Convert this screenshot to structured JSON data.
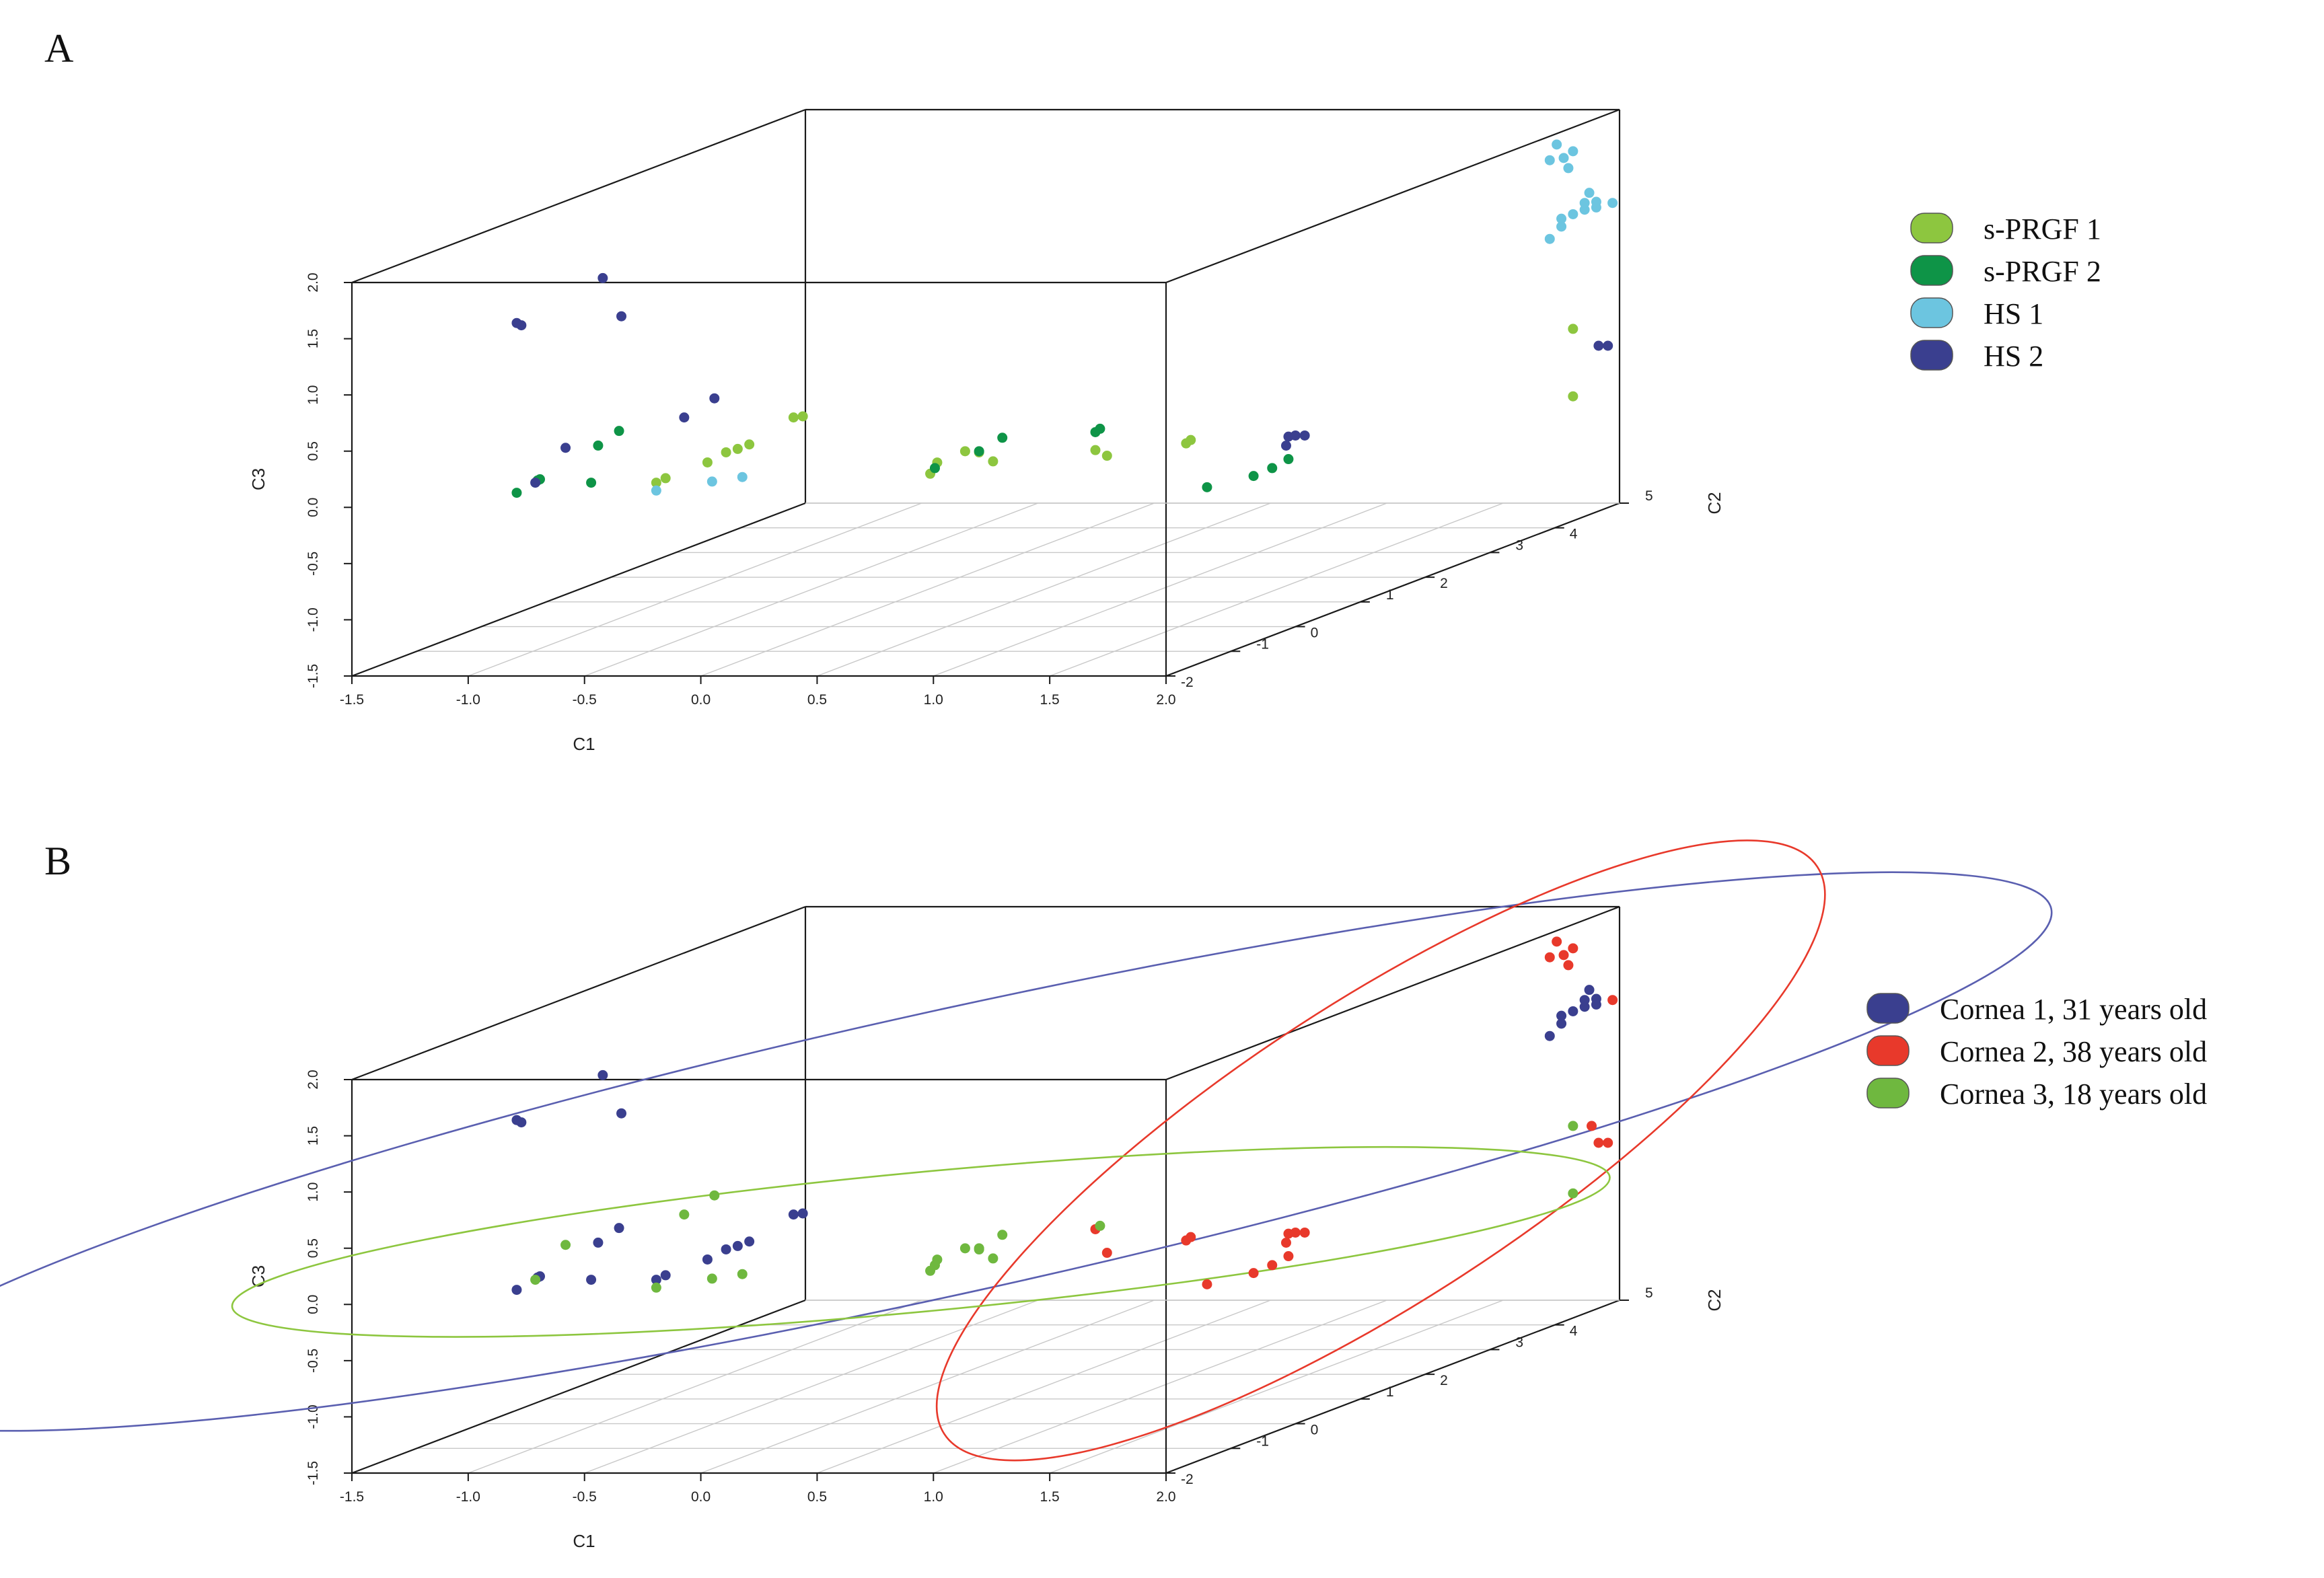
{
  "chart_data": [
    {
      "panel": "A",
      "type": "scatter",
      "xlabel": "C1",
      "ylabel": "C2",
      "zlabel": "C3",
      "xlim": [
        -1.5,
        2.0
      ],
      "ylim": [
        -2,
        5
      ],
      "zlim": [
        -1.5,
        2.0
      ],
      "x_ticks": [
        "-1.5",
        "-1.0",
        "-0.5",
        "0.0",
        "0.5",
        "1.0",
        "1.5",
        "2.0"
      ],
      "y_ticks": [
        "-2",
        "-1",
        "0",
        "1",
        "2",
        "3",
        "4",
        "5"
      ],
      "z_ticks": [
        "-1.5",
        "-1.0",
        "-0.5",
        "0.0",
        "0.5",
        "1.0",
        "1.5",
        "2.0"
      ],
      "legend": [
        {
          "name": "s-PRGF 1",
          "color": "#8dc63f"
        },
        {
          "name": "s-PRGF 2",
          "color": "#0e9447"
        },
        {
          "name": "HS 1",
          "color": "#6cc5e0"
        },
        {
          "name": "HS 2",
          "color": "#3a3f8f"
        }
      ],
      "series": [
        {
          "name": "s-PRGF 1",
          "color": "#8dc63f",
          "points": [
            [
              -0.47,
              -1,
              0.0
            ],
            [
              -0.43,
              -1,
              0.04
            ],
            [
              -0.25,
              -1,
              0.18
            ],
            [
              -0.17,
              -1,
              0.27
            ],
            [
              -0.12,
              -1,
              0.3
            ],
            [
              -0.07,
              -1,
              0.34
            ],
            [
              0.12,
              -1,
              0.58
            ],
            [
              0.16,
              -1,
              0.59
            ],
            [
              0.29,
              0.5,
              -0.25
            ],
            [
              0.32,
              0.5,
              -0.15
            ],
            [
              0.44,
              0.5,
              -0.05
            ],
            [
              0.5,
              0.5,
              -0.06
            ],
            [
              0.56,
              0.5,
              -0.14
            ],
            [
              1.0,
              0.5,
              -0.04
            ],
            [
              1.05,
              0.5,
              -0.09
            ],
            [
              1.39,
              0.5,
              0.02
            ],
            [
              1.41,
              0.5,
              0.05
            ],
            [
              1.8,
              5,
              0.05
            ],
            [
              1.8,
              5,
              -0.55
            ]
          ]
        },
        {
          "name": "s-PRGF 2",
          "color": "#0e9447",
          "points": [
            [
              -1.07,
              -1,
              -0.09
            ],
            [
              -0.98,
              -1,
              0.02
            ],
            [
              -0.97,
              -1,
              0.03
            ],
            [
              -0.75,
              -1,
              0.0
            ],
            [
              -0.72,
              -1,
              0.33
            ],
            [
              -0.63,
              -1,
              0.46
            ],
            [
              0.31,
              0.5,
              -0.2
            ],
            [
              0.5,
              0.5,
              -0.05
            ],
            [
              0.6,
              0.5,
              0.07
            ],
            [
              1.0,
              0.5,
              0.12
            ],
            [
              1.02,
              0.5,
              0.15
            ],
            [
              1.48,
              0.5,
              -0.37
            ],
            [
              1.68,
              0.5,
              -0.27
            ],
            [
              1.76,
              0.5,
              -0.2
            ],
            [
              1.83,
              0.5,
              -0.12
            ]
          ]
        },
        {
          "name": "HS 1",
          "color": "#6cc5e0",
          "points": [
            [
              -0.47,
              -1,
              -0.07
            ],
            [
              -0.23,
              -1,
              0.01
            ],
            [
              -0.1,
              -1,
              0.05
            ],
            [
              1.7,
              5,
              0.85
            ],
            [
              1.75,
              5,
              0.96
            ],
            [
              1.75,
              5,
              1.03
            ],
            [
              1.8,
              5,
              1.07
            ],
            [
              1.85,
              5,
              1.11
            ],
            [
              1.9,
              5,
              1.13
            ],
            [
              1.9,
              5,
              1.18
            ],
            [
              1.85,
              5,
              1.17
            ],
            [
              1.87,
              5,
              1.26
            ],
            [
              1.97,
              5,
              1.17
            ],
            [
              1.78,
              5,
              1.48
            ],
            [
              1.8,
              5,
              1.63
            ],
            [
              1.7,
              5,
              1.55
            ],
            [
              1.76,
              5,
              1.57
            ],
            [
              1.73,
              5,
              1.69
            ]
          ]
        },
        {
          "name": "HS 2",
          "color": "#3a3f8f",
          "points": [
            [
              -1.07,
              -1,
              1.42
            ],
            [
              -1.05,
              -1,
              1.4
            ],
            [
              -0.7,
              -1,
              1.82
            ],
            [
              -0.62,
              -1,
              1.48
            ],
            [
              -0.99,
              -1,
              0.0
            ],
            [
              -0.86,
              -1,
              0.31
            ],
            [
              -0.35,
              -1,
              0.58
            ],
            [
              -0.22,
              -1,
              0.75
            ],
            [
              1.83,
              0.5,
              0.08
            ],
            [
              1.86,
              0.5,
              0.09
            ],
            [
              1.9,
              0.5,
              0.09
            ],
            [
              1.82,
              0.5,
              0.0
            ],
            [
              1.91,
              5,
              -0.1
            ],
            [
              1.95,
              5,
              -0.1
            ]
          ]
        }
      ]
    },
    {
      "panel": "B",
      "type": "scatter",
      "xlabel": "C1",
      "ylabel": "C2",
      "zlabel": "C3",
      "xlim": [
        -1.5,
        2.0
      ],
      "ylim": [
        -2,
        5
      ],
      "zlim": [
        -1.5,
        2.0
      ],
      "x_ticks": [
        "-1.5",
        "-1.0",
        "-0.5",
        "0.0",
        "0.5",
        "1.0",
        "1.5",
        "2.0"
      ],
      "y_ticks": [
        "-2",
        "-1",
        "0",
        "1",
        "2",
        "3",
        "4",
        "5"
      ],
      "z_ticks": [
        "-1.5",
        "-1.0",
        "-0.5",
        "0.0",
        "0.5",
        "1.0",
        "1.5",
        "2.0"
      ],
      "legend": [
        {
          "name": "Cornea 1, 31 years old",
          "color": "#3a3f8f"
        },
        {
          "name": "Cornea 2, 38 years old",
          "color": "#e8392b"
        },
        {
          "name": "Cornea 3, 18 years old",
          "color": "#6fb83f"
        }
      ],
      "series": [
        {
          "name": "Cornea 1, 31 years old",
          "color": "#3a3f8f",
          "points": [
            [
              -1.07,
              -1,
              -0.09
            ],
            [
              -0.98,
              -1,
              0.02
            ],
            [
              -0.97,
              -1,
              0.03
            ],
            [
              -0.75,
              -1,
              0.0
            ],
            [
              -0.72,
              -1,
              0.33
            ],
            [
              -0.63,
              -1,
              0.46
            ],
            [
              -0.47,
              -1,
              0.0
            ],
            [
              -0.43,
              -1,
              0.04
            ],
            [
              -0.25,
              -1,
              0.18
            ],
            [
              -0.17,
              -1,
              0.27
            ],
            [
              -0.12,
              -1,
              0.3
            ],
            [
              -0.07,
              -1,
              0.34
            ],
            [
              0.12,
              -1,
              0.58
            ],
            [
              0.16,
              -1,
              0.59
            ],
            [
              -1.07,
              -1,
              1.42
            ],
            [
              -1.05,
              -1,
              1.4
            ],
            [
              -0.7,
              -1,
              1.82
            ],
            [
              -0.62,
              -1,
              1.48
            ],
            [
              1.7,
              5,
              0.85
            ],
            [
              1.75,
              5,
              0.96
            ],
            [
              1.75,
              5,
              1.03
            ],
            [
              1.8,
              5,
              1.07
            ],
            [
              1.85,
              5,
              1.11
            ],
            [
              1.9,
              5,
              1.13
            ],
            [
              1.9,
              5,
              1.18
            ],
            [
              1.85,
              5,
              1.17
            ],
            [
              1.87,
              5,
              1.26
            ]
          ]
        },
        {
          "name": "Cornea 2, 38 years old",
          "color": "#e8392b",
          "points": [
            [
              1.0,
              0.5,
              0.12
            ],
            [
              1.39,
              0.5,
              0.02
            ],
            [
              1.41,
              0.5,
              0.05
            ],
            [
              1.83,
              0.5,
              0.08
            ],
            [
              1.86,
              0.5,
              0.09
            ],
            [
              1.9,
              0.5,
              0.09
            ],
            [
              1.82,
              0.5,
              0.0
            ],
            [
              1.48,
              0.5,
              -0.37
            ],
            [
              1.68,
              0.5,
              -0.27
            ],
            [
              1.76,
              0.5,
              -0.2
            ],
            [
              1.83,
              0.5,
              -0.12
            ],
            [
              1.05,
              0.5,
              -0.09
            ],
            [
              1.91,
              5,
              -0.1
            ],
            [
              1.95,
              5,
              -0.1
            ],
            [
              1.88,
              5,
              0.05
            ],
            [
              1.97,
              5,
              1.17
            ],
            [
              1.78,
              5,
              1.48
            ],
            [
              1.8,
              5,
              1.63
            ],
            [
              1.7,
              5,
              1.55
            ],
            [
              1.76,
              5,
              1.57
            ],
            [
              1.73,
              5,
              1.69
            ]
          ]
        },
        {
          "name": "Cornea 3, 18 years old",
          "color": "#6fb83f",
          "points": [
            [
              -0.47,
              -1,
              -0.07
            ],
            [
              -0.23,
              -1,
              0.01
            ],
            [
              -0.1,
              -1,
              0.05
            ],
            [
              -0.99,
              -1,
              0.0
            ],
            [
              -0.86,
              -1,
              0.31
            ],
            [
              -0.35,
              -1,
              0.58
            ],
            [
              -0.22,
              -1,
              0.75
            ],
            [
              0.29,
              0.5,
              -0.25
            ],
            [
              0.32,
              0.5,
              -0.15
            ],
            [
              0.44,
              0.5,
              -0.05
            ],
            [
              0.5,
              0.5,
              -0.06
            ],
            [
              0.56,
              0.5,
              -0.14
            ],
            [
              0.31,
              0.5,
              -0.2
            ],
            [
              0.5,
              0.5,
              -0.05
            ],
            [
              0.6,
              0.5,
              0.07
            ],
            [
              1.02,
              0.5,
              0.15
            ],
            [
              1.8,
              5,
              0.05
            ],
            [
              1.8,
              5,
              -0.55
            ]
          ]
        }
      ],
      "ellipses": [
        {
          "series": "Cornea 1, 31 years old",
          "color": "#5a5fb0"
        },
        {
          "series": "Cornea 2, 38 years old",
          "color": "#e8392b"
        },
        {
          "series": "Cornea 3, 18 years old",
          "color": "#8dc63f"
        }
      ]
    }
  ],
  "panels": {
    "a_label": "A",
    "b_label": "B"
  }
}
